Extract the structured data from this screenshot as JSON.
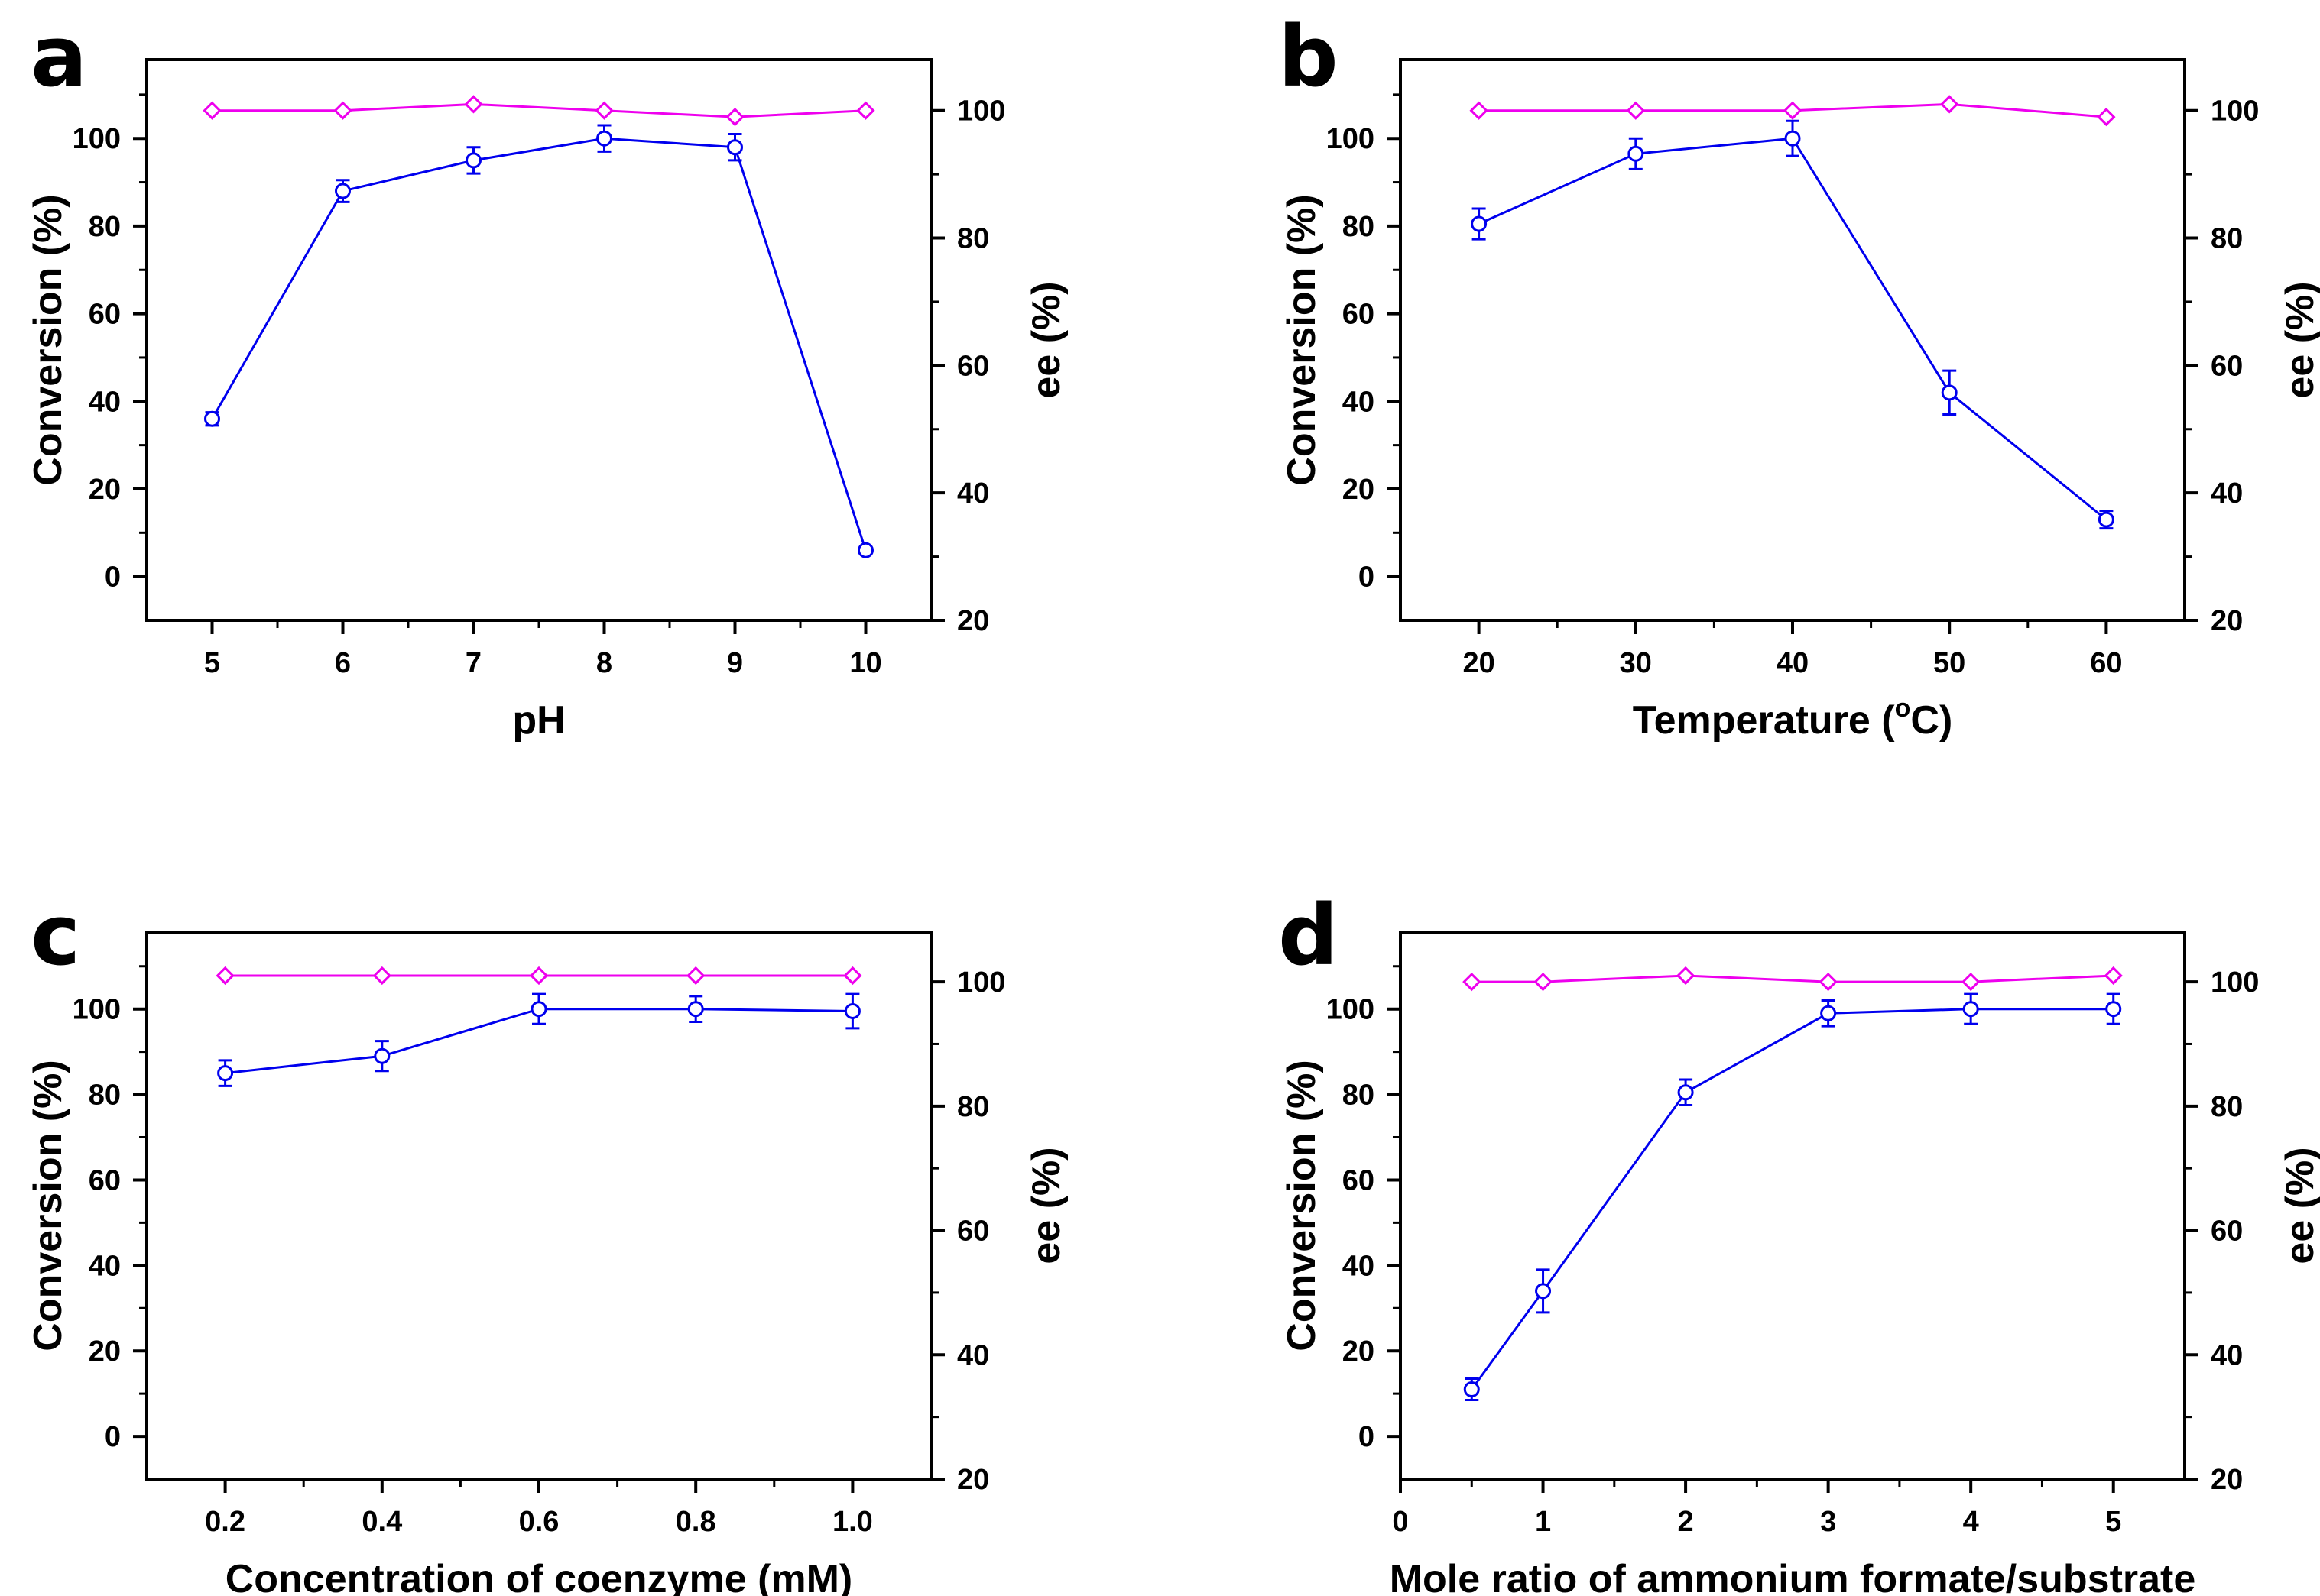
{
  "colors": {
    "conversion": "#0000ee",
    "ee": "#ee00ee",
    "axis": "#000000"
  },
  "chart_data": [
    {
      "type": "line",
      "panel_label": "a",
      "xlabel": "pH",
      "ylabel": "Conversion (%)",
      "y2label": "ee (%)",
      "x_ticks": [
        "5",
        "6",
        "7",
        "8",
        "9",
        "10"
      ],
      "xlim": [
        4.5,
        10.5
      ],
      "ylim": [
        -10,
        118
      ],
      "y_ticks": [
        "0",
        "20",
        "40",
        "60",
        "80",
        "100"
      ],
      "y2lim": [
        20,
        108
      ],
      "y2_ticks": [
        "20",
        "40",
        "60",
        "80",
        "100"
      ],
      "grid": false,
      "series": [
        {
          "axis": "left",
          "marker": "circle",
          "x": [
            5,
            6,
            7,
            8,
            9,
            10
          ],
          "values": [
            36,
            88,
            95,
            100,
            98,
            6
          ],
          "error": [
            1.5,
            2.5,
            3,
            3,
            3,
            0
          ]
        },
        {
          "axis": "right",
          "marker": "diamond",
          "x": [
            5,
            6,
            7,
            8,
            9,
            10
          ],
          "values": [
            100,
            100,
            101,
            100,
            99,
            100
          ]
        }
      ]
    },
    {
      "type": "line",
      "panel_label": "b",
      "xlabel": "Temperature (oC)",
      "xlabel_parts": [
        "Temperature (",
        "o",
        "C)"
      ],
      "ylabel": "Conversion (%)",
      "y2label": "ee (%)",
      "x_ticks": [
        "20",
        "30",
        "40",
        "50",
        "60"
      ],
      "xlim": [
        15,
        65
      ],
      "ylim": [
        -10,
        118
      ],
      "y_ticks": [
        "0",
        "20",
        "40",
        "60",
        "80",
        "100"
      ],
      "y2lim": [
        20,
        108
      ],
      "y2_ticks": [
        "20",
        "40",
        "60",
        "80",
        "100"
      ],
      "grid": false,
      "series": [
        {
          "axis": "left",
          "marker": "circle",
          "x": [
            20,
            30,
            40,
            50,
            60
          ],
          "values": [
            80.5,
            96.5,
            100,
            42,
            13
          ],
          "error": [
            3.5,
            3.5,
            4,
            5,
            2
          ]
        },
        {
          "axis": "right",
          "marker": "diamond",
          "x": [
            20,
            30,
            40,
            50,
            60
          ],
          "values": [
            100,
            100,
            100,
            101,
            99
          ]
        }
      ]
    },
    {
      "type": "line",
      "panel_label": "c",
      "xlabel": "Concentration of coenzyme (mM)",
      "ylabel": "Conversion (%)",
      "y2label": "ee (%)",
      "x_ticks": [
        "0.2",
        "0.4",
        "0.6",
        "0.8",
        "1.0"
      ],
      "xlim": [
        0.1,
        1.1
      ],
      "ylim": [
        -10,
        118
      ],
      "y_ticks": [
        "0",
        "20",
        "40",
        "60",
        "80",
        "100"
      ],
      "y2lim": [
        20,
        108
      ],
      "y2_ticks": [
        "20",
        "40",
        "60",
        "80",
        "100"
      ],
      "grid": false,
      "series": [
        {
          "axis": "left",
          "marker": "circle",
          "x": [
            0.2,
            0.4,
            0.6,
            0.8,
            1.0
          ],
          "values": [
            85,
            89,
            100,
            100,
            99.5
          ],
          "error": [
            3,
            3.5,
            3.5,
            3,
            4
          ]
        },
        {
          "axis": "right",
          "marker": "diamond",
          "x": [
            0.2,
            0.4,
            0.6,
            0.8,
            1.0
          ],
          "values": [
            101,
            101,
            101,
            101,
            101
          ]
        }
      ]
    },
    {
      "type": "line",
      "panel_label": "d",
      "xlabel": "Mole ratio of ammonium formate/substrate",
      "ylabel": "Conversion (%)",
      "y2label": "ee (%)",
      "x_ticks": [
        "0",
        "1",
        "2",
        "3",
        "4",
        "5"
      ],
      "xlim": [
        0,
        5.5
      ],
      "ylim": [
        -10,
        118
      ],
      "y_ticks": [
        "0",
        "20",
        "40",
        "60",
        "80",
        "100"
      ],
      "y2lim": [
        20,
        108
      ],
      "y2_ticks": [
        "20",
        "40",
        "60",
        "80",
        "100"
      ],
      "grid": false,
      "series": [
        {
          "axis": "left",
          "marker": "circle",
          "x": [
            0.5,
            1,
            2,
            3,
            4,
            5
          ],
          "values": [
            11,
            34,
            80.5,
            99,
            100,
            100
          ],
          "error": [
            2.5,
            5,
            3,
            3,
            3.5,
            3.5
          ]
        },
        {
          "axis": "right",
          "marker": "diamond",
          "x": [
            0.5,
            1,
            2,
            3,
            4,
            5
          ],
          "values": [
            100,
            100,
            101,
            100,
            100,
            101
          ]
        }
      ]
    }
  ]
}
